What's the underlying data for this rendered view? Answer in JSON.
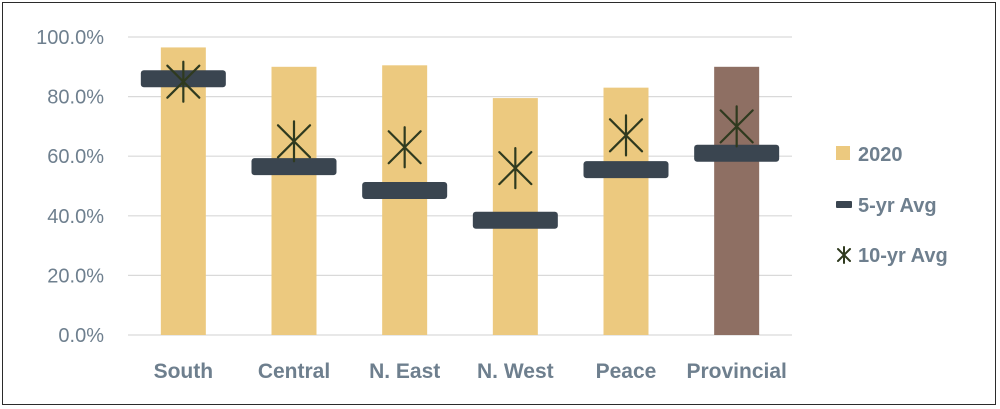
{
  "chart_data": {
    "type": "bar",
    "categories": [
      "South",
      "Central",
      "N. East",
      "N. West",
      "Peace",
      "Provincial"
    ],
    "series": [
      {
        "name": "2020",
        "values": [
          96.5,
          90.0,
          90.5,
          79.5,
          83.0,
          90.0
        ],
        "color": "#ecc97f",
        "highlight_color": "#8e6f63",
        "highlight_category": "Provincial"
      },
      {
        "name": "5-yr Avg",
        "values": [
          86.0,
          56.5,
          48.5,
          38.5,
          55.5,
          61.0
        ],
        "color": "#3a4550",
        "marker": "dash"
      },
      {
        "name": "10-yr Avg",
        "values": [
          85.0,
          65.0,
          63.0,
          56.0,
          67.0,
          70.0
        ],
        "color": "#2f3a1f",
        "marker": "star"
      }
    ],
    "ylim": [
      0,
      100
    ],
    "yticks": [
      "0.0%",
      "20.0%",
      "40.0%",
      "60.0%",
      "80.0%",
      "100.0%"
    ],
    "ytick_values": [
      0,
      20,
      40,
      60,
      80,
      100
    ],
    "grid": true,
    "legend_position": "right",
    "xlabel": "",
    "ylabel": "",
    "title": ""
  }
}
